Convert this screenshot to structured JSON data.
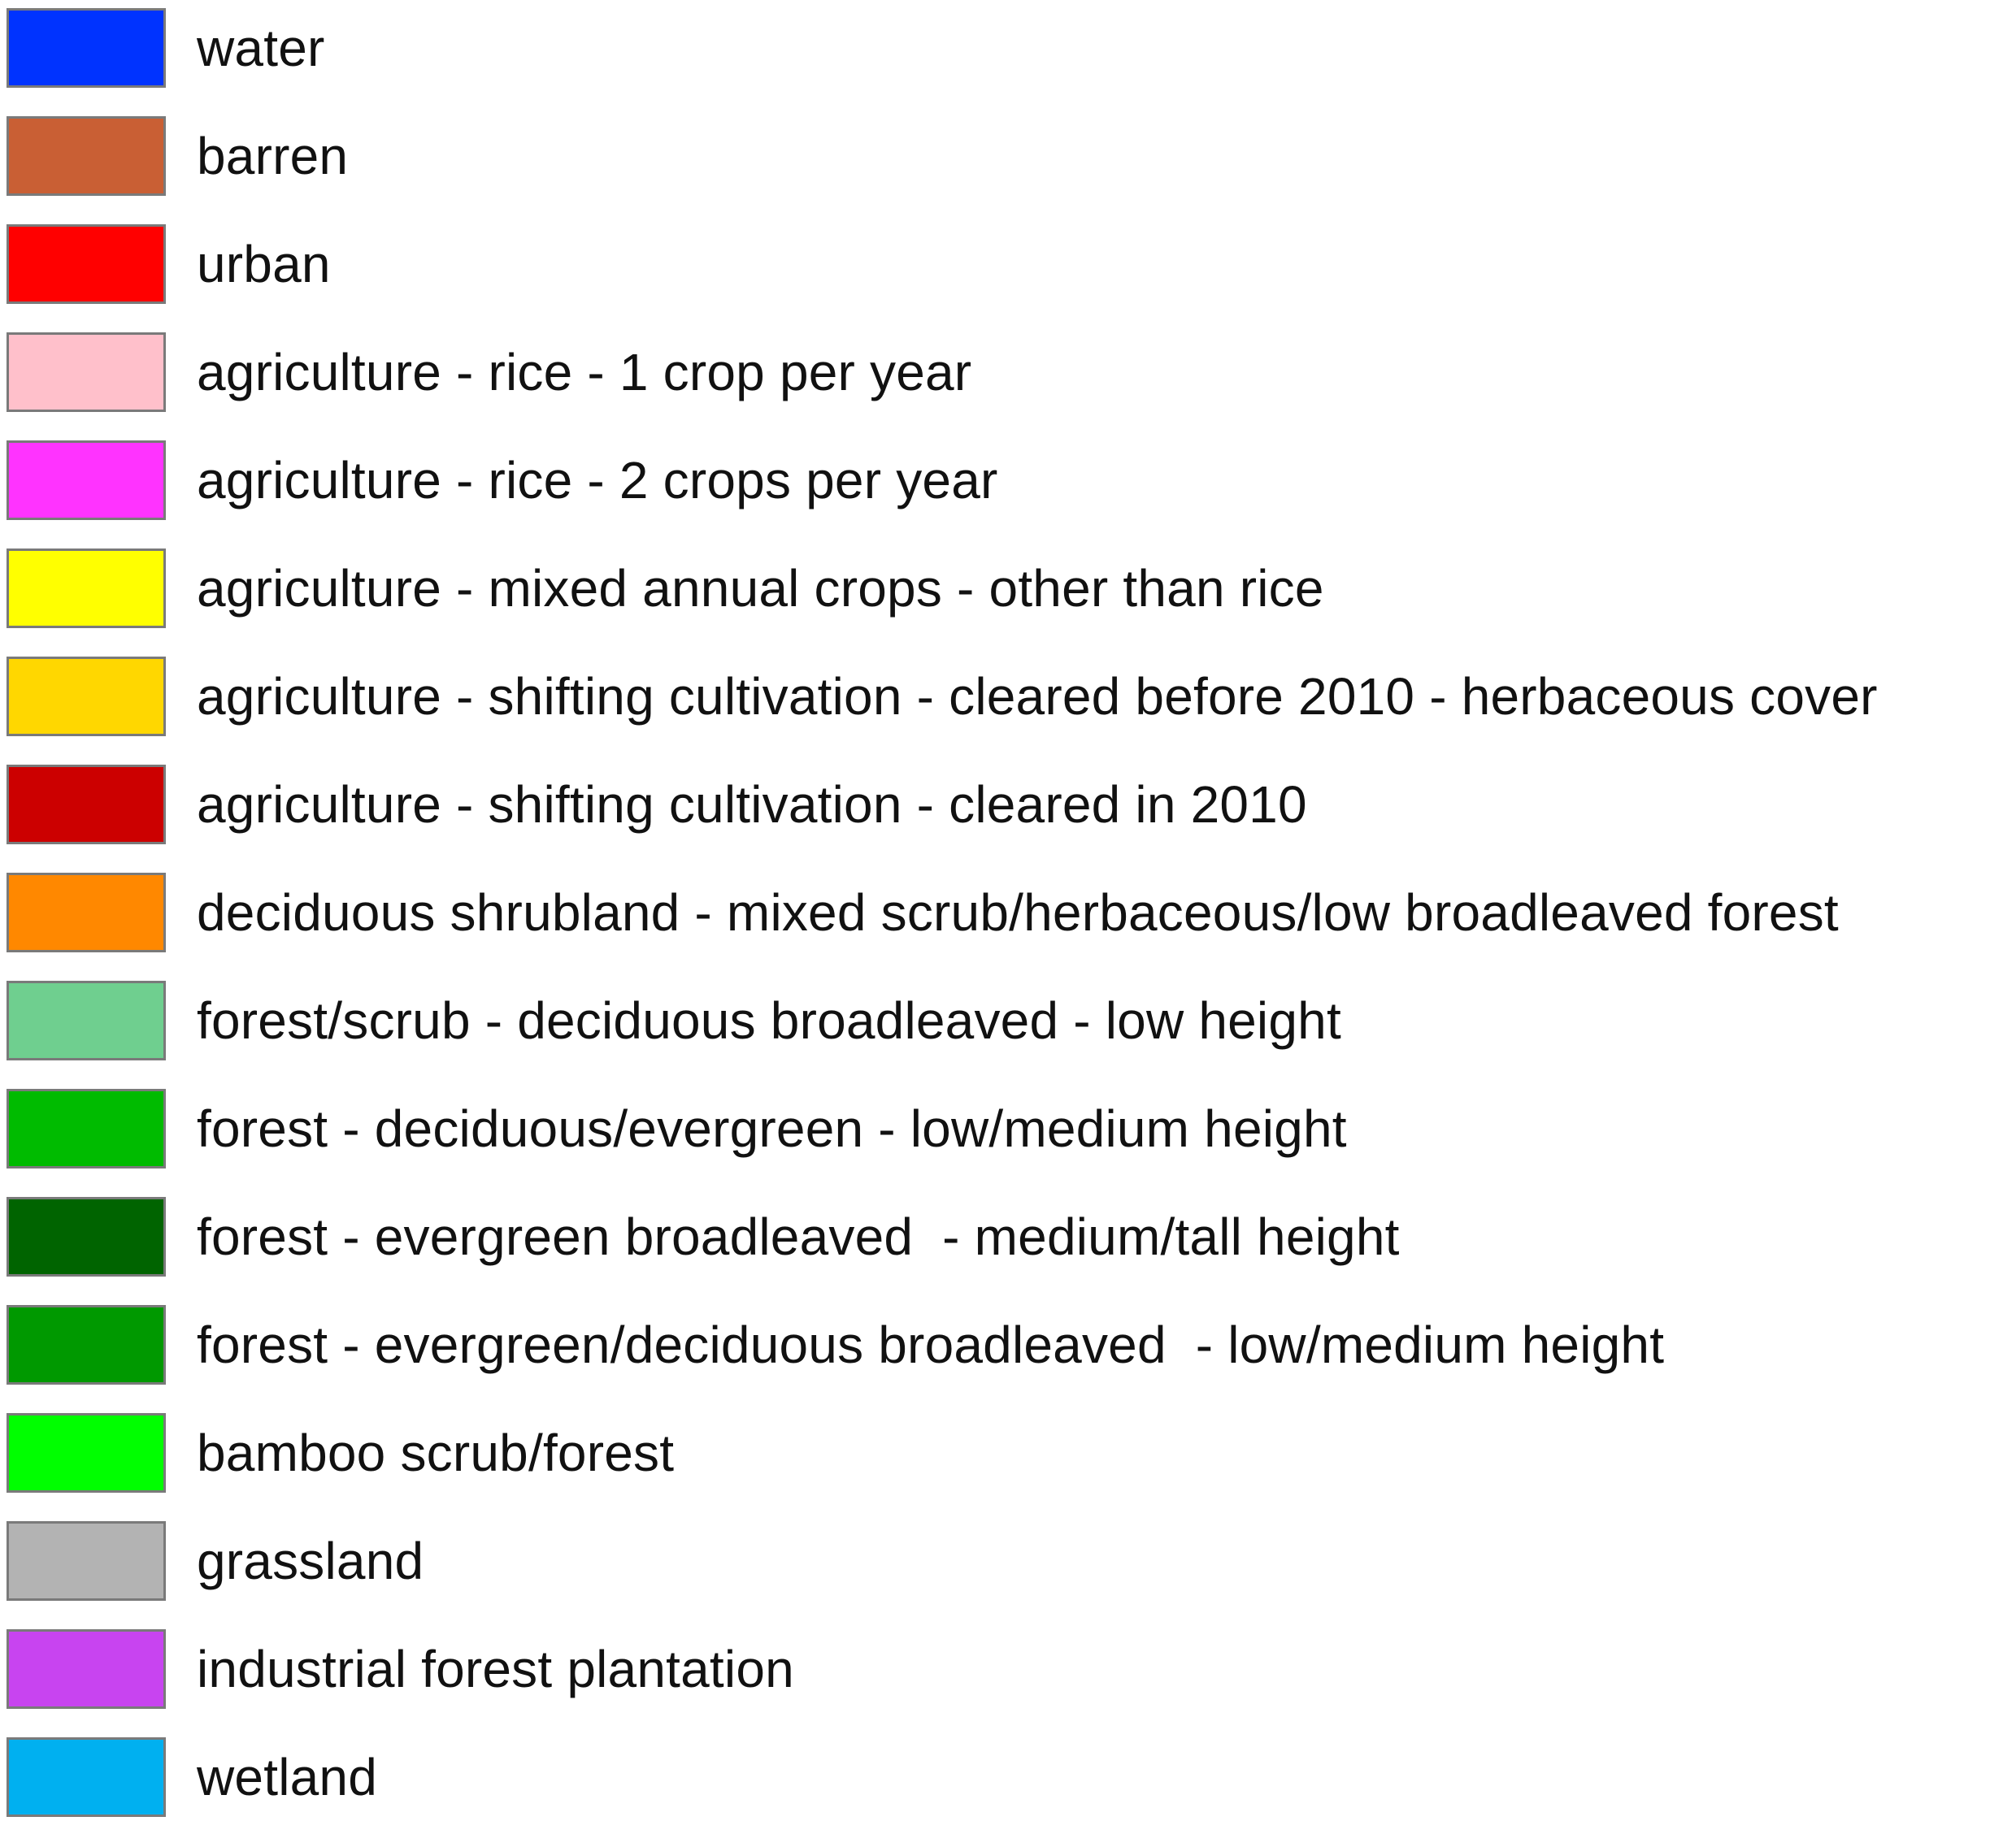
{
  "legend": {
    "items": [
      {
        "label": "water",
        "color": "#0033ff"
      },
      {
        "label": "barren",
        "color": "#c95f34"
      },
      {
        "label": "urban",
        "color": "#ff0000"
      },
      {
        "label": "agriculture - rice - 1 crop per year",
        "color": "#ffc0cb"
      },
      {
        "label": "agriculture - rice - 2 crops per year",
        "color": "#ff33ff"
      },
      {
        "label": "agriculture - mixed annual crops - other than rice",
        "color": "#ffff00"
      },
      {
        "label": "agriculture - shifting cultivation - cleared before 2010 - herbaceous cover",
        "color": "#ffd700"
      },
      {
        "label": "agriculture - shifting cultivation - cleared in 2010",
        "color": "#cc0000"
      },
      {
        "label": "deciduous shrubland - mixed scrub/herbaceous/low broadleaved forest",
        "color": "#ff8800"
      },
      {
        "label": "forest/scrub - deciduous broadleaved - low height",
        "color": "#6fcf8f"
      },
      {
        "label": "forest - deciduous/evergreen - low/medium height",
        "color": "#00bb00"
      },
      {
        "label": "forest - evergreen broadleaved  - medium/tall height",
        "color": "#006400"
      },
      {
        "label": "forest - evergreen/deciduous broadleaved  - low/medium height",
        "color": "#009900"
      },
      {
        "label": "bamboo scrub/forest",
        "color": "#00ff00"
      },
      {
        "label": "grassland",
        "color": "#b3b3b3"
      },
      {
        "label": "industrial forest plantation",
        "color": "#c844f0"
      },
      {
        "label": "wetland",
        "color": "#00b0f0"
      }
    ]
  }
}
